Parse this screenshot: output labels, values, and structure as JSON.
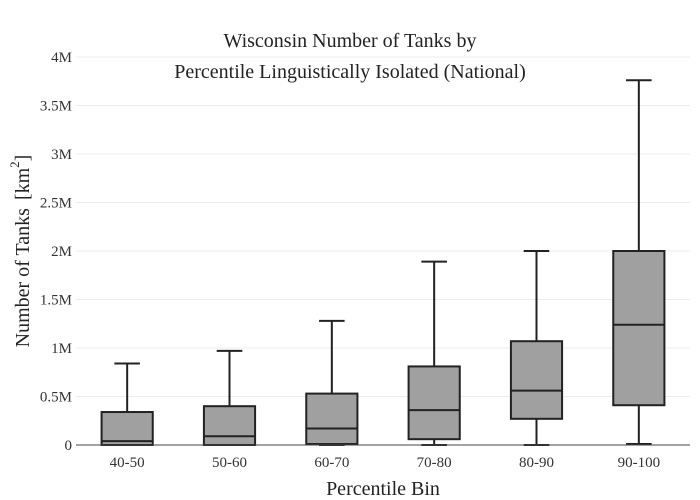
{
  "chart_data": {
    "type": "box",
    "title_lines": [
      "Wisconsin Number of Tanks by",
      "Percentile Linguistically Isolated (National)"
    ],
    "xlabel": "Percentile Bin",
    "ylabel": "Number of Tanks",
    "ylabel_unit": "km",
    "ylabel_unit_power": "2",
    "ylim": [
      0,
      4000000
    ],
    "yticks": [
      {
        "value": 0,
        "label": "0"
      },
      {
        "value": 500000,
        "label": "0.5M"
      },
      {
        "value": 1000000,
        "label": "1M"
      },
      {
        "value": 1500000,
        "label": "1.5M"
      },
      {
        "value": 2000000,
        "label": "2M"
      },
      {
        "value": 2500000,
        "label": "2.5M"
      },
      {
        "value": 3000000,
        "label": "3M"
      },
      {
        "value": 3500000,
        "label": "3.5M"
      },
      {
        "value": 4000000,
        "label": "4M"
      }
    ],
    "grid": true,
    "box_color": "#a0a0a0",
    "categories": [
      "40-50",
      "50-60",
      "60-70",
      "70-80",
      "80-90",
      "90-100"
    ],
    "boxes": [
      {
        "category": "40-50",
        "min": 0,
        "q1": 0,
        "median": 40000,
        "q3": 340000,
        "max": 840000
      },
      {
        "category": "50-60",
        "min": 0,
        "q1": 0,
        "median": 90000,
        "q3": 400000,
        "max": 970000
      },
      {
        "category": "60-70",
        "min": 0,
        "q1": 10000,
        "median": 170000,
        "q3": 530000,
        "max": 1280000
      },
      {
        "category": "70-80",
        "min": 0,
        "q1": 60000,
        "median": 360000,
        "q3": 810000,
        "max": 1890000
      },
      {
        "category": "80-90",
        "min": 0,
        "q1": 270000,
        "median": 560000,
        "q3": 1070000,
        "max": 2000000
      },
      {
        "category": "90-100",
        "min": 10000,
        "q1": 410000,
        "median": 1240000,
        "q3": 2000000,
        "max": 3760000
      }
    ]
  }
}
